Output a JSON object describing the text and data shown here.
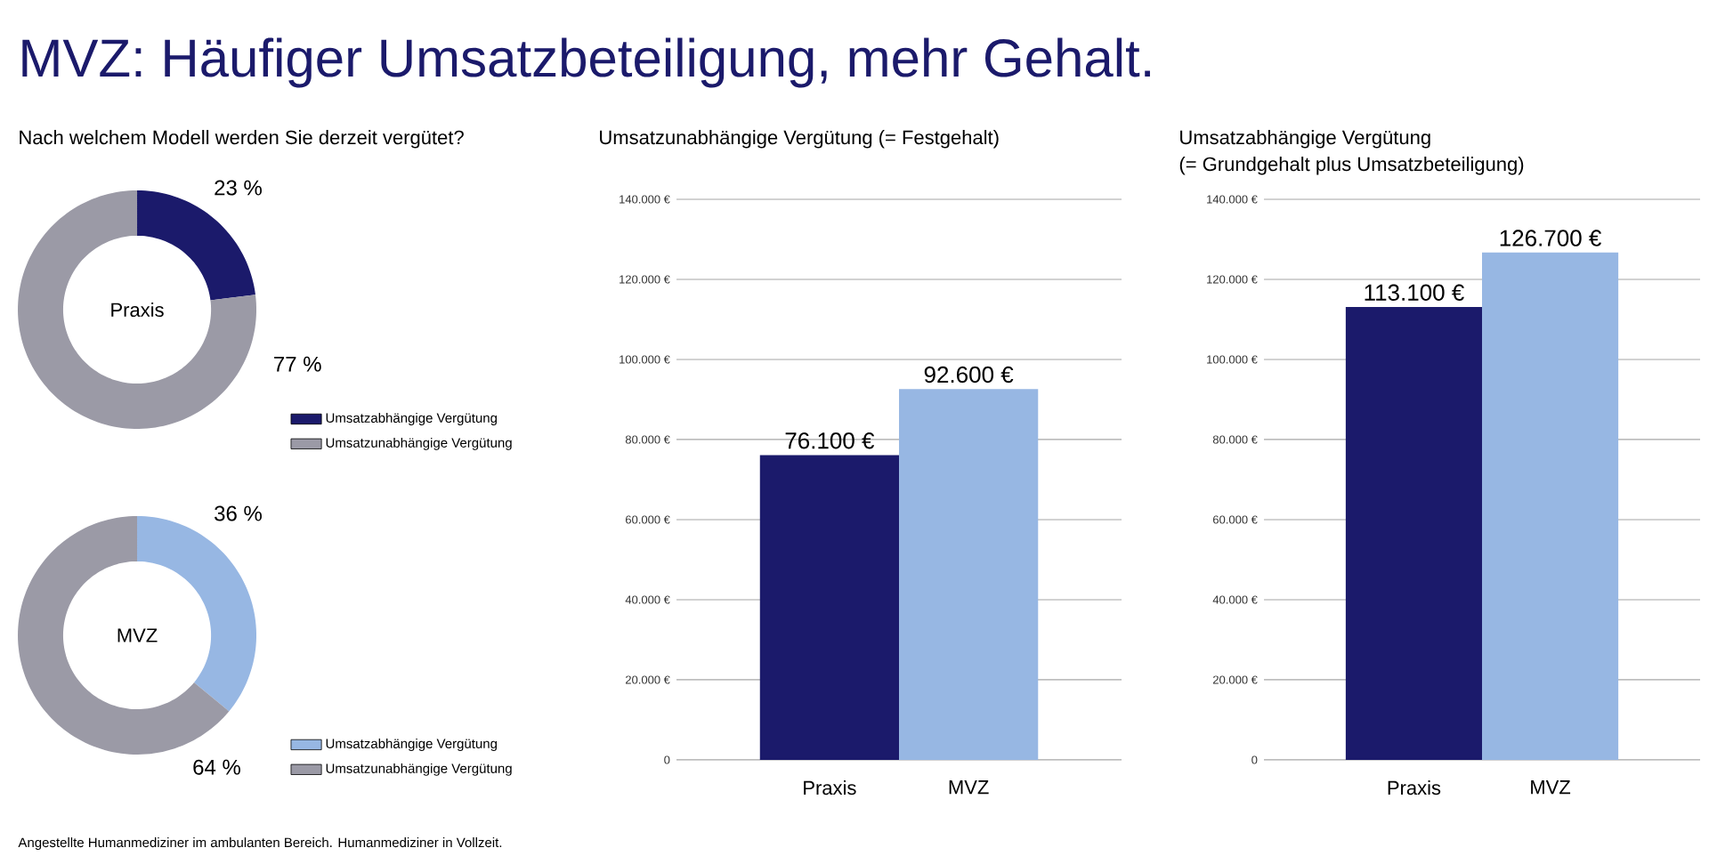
{
  "chart_data": [
    {
      "type": "donut",
      "title": "MVZ: Häufiger Umsatzbeteiligung, mehr Gehalt.",
      "subtitle": "Nach welchem Modell werden Sie derzeit vergütet?",
      "categories": [
        "Umsatzabhängige Vergütung",
        "Umsatzunabhängige Vergütung"
      ],
      "values": [
        23,
        77
      ],
      "colors": [
        "#1b1a6b",
        "#9b9aa6"
      ],
      "value_labels": [
        "23 %",
        "77 %"
      ],
      "annotations": [
        "Praxis"
      ],
      "legend": "right"
    },
    {
      "type": "donut",
      "categories": [
        "Umsatzabhängige Vergütung",
        "Umsatzunabhängige Vergütung"
      ],
      "values": [
        36,
        64
      ],
      "colors": [
        "#97b7e3",
        "#9b9aa6"
      ],
      "value_labels": [
        "36 %",
        "64 %"
      ],
      "annotations": [
        "MVZ",
        "Angestellte Humanmediziner im ambulanten Bereich. Humanmediziner in Vollzeit."
      ],
      "legend": "right"
    },
    {
      "type": "bar",
      "title": "Umsatzunabhängige Vergütung (= Festgehalt)",
      "categories": [
        "Praxis",
        "MVZ"
      ],
      "values": [
        76100,
        92600
      ],
      "colors": [
        "#1b1a6b",
        "#97b7e3"
      ],
      "value_labels": [
        "76.100 €",
        "92.600 €"
      ],
      "ylim": [
        0,
        140000
      ],
      "yticks": [
        0,
        {
          "value": 20000,
          "label": "20.000 €"
        },
        {
          "value": 40000,
          "label": "40.000 €"
        },
        {
          "value": 60000,
          "label": "60.000 €"
        },
        {
          "value": 80000,
          "label": "80.000 €"
        },
        {
          "value": 100000,
          "label": "100.000 €"
        },
        {
          "value": 120000,
          "label": "120.000 €"
        },
        {
          "value": 140000,
          "label": "140.000 €"
        }
      ],
      "grid": "y"
    },
    {
      "type": "bar",
      "title": "Umsatzabhängige Vergütung",
      "subtitle": "(= Grundgehalt plus Umsatzbeteiligung)",
      "categories": [
        "Praxis",
        "MVZ"
      ],
      "values": [
        113100,
        126700
      ],
      "colors": [
        "#1b1a6b",
        "#97b7e3"
      ],
      "value_labels": [
        "113.100 €",
        "126.700 €"
      ],
      "ylim": [
        0,
        140000
      ],
      "yticks": [
        0,
        {
          "value": 20000,
          "label": "20.000 €"
        },
        {
          "value": 40000,
          "label": "40.000 €"
        },
        {
          "value": 60000,
          "label": "60.000 €"
        },
        {
          "value": 80000,
          "label": "80.000 €"
        },
        {
          "value": 100000,
          "label": "100.000 €"
        },
        {
          "value": 120000,
          "label": "120.000 €"
        },
        {
          "value": 140000,
          "label": "140.000 €"
        }
      ],
      "grid": "y"
    }
  ]
}
